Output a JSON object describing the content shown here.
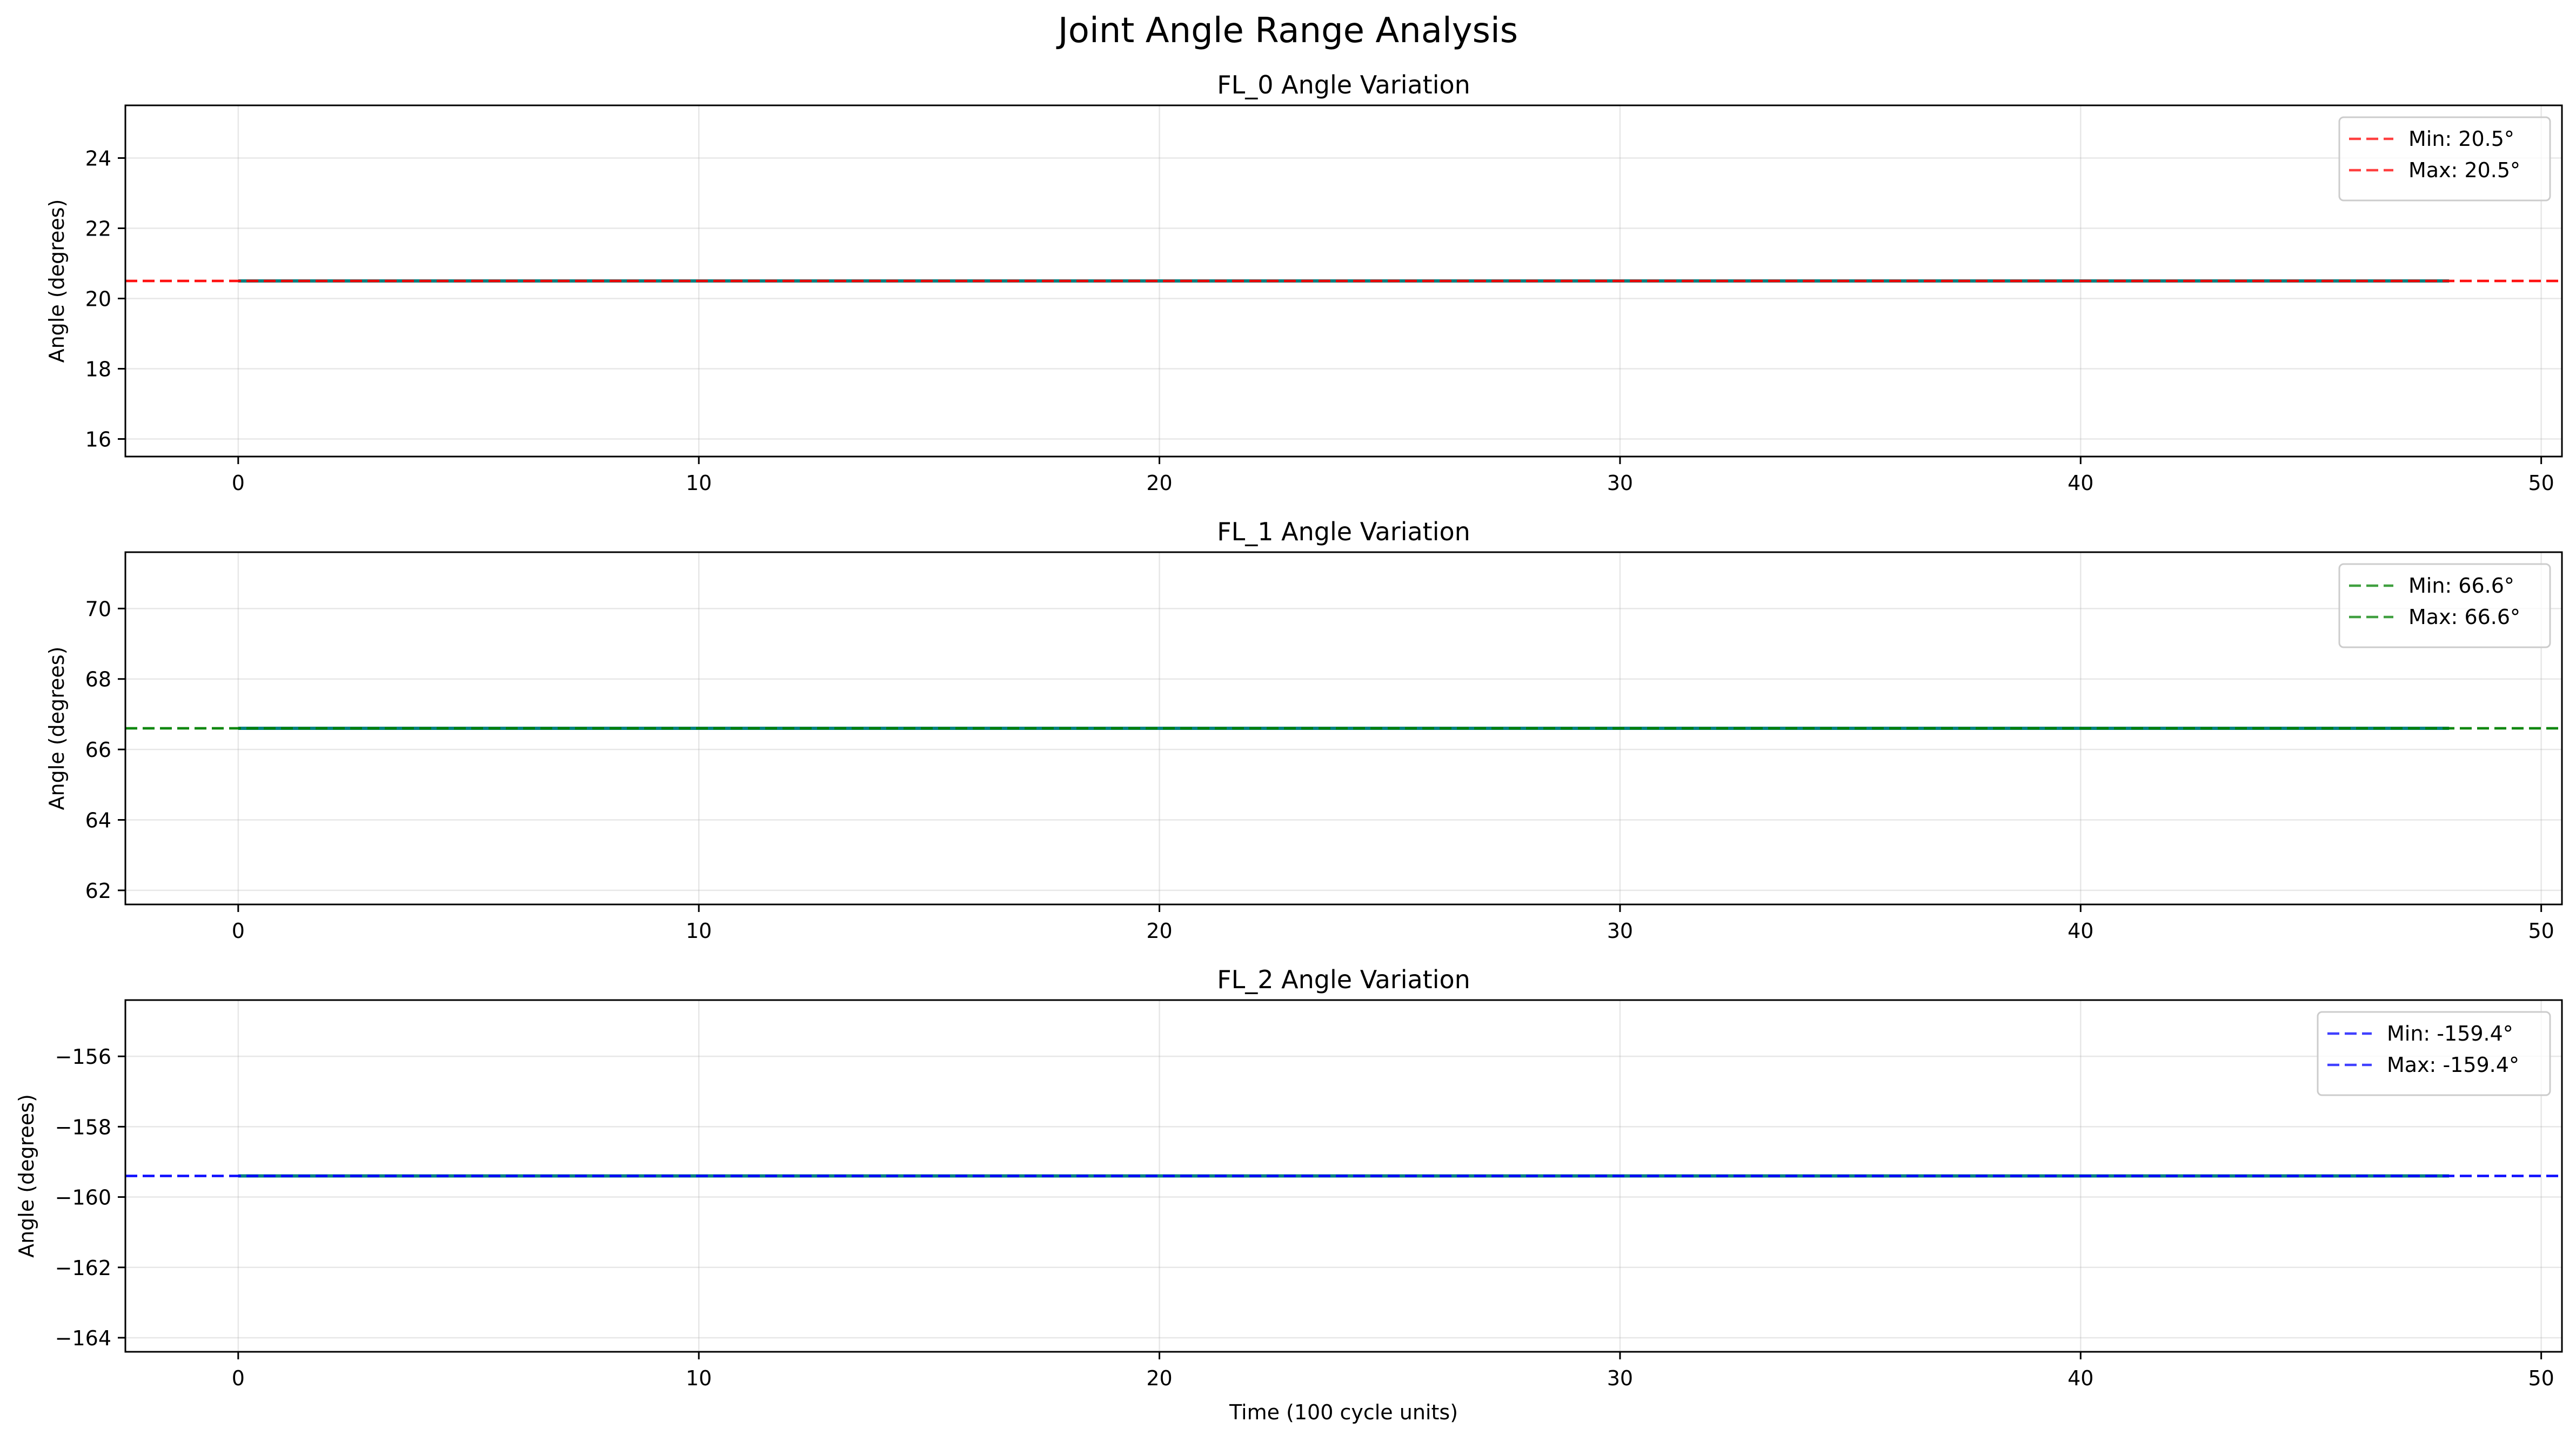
{
  "figure": {
    "title": "Joint Angle Range Analysis"
  },
  "chart_data": [
    {
      "type": "line",
      "title": "FL_0 Angle Variation",
      "xlabel": "",
      "ylabel": "Angle (degrees)",
      "xlim": [
        -2.45,
        50.45
      ],
      "ylim": [
        15.5,
        25.5
      ],
      "xticks": [
        0,
        10,
        20,
        30,
        40,
        50
      ],
      "yticks": [
        16,
        18,
        20,
        22,
        24
      ],
      "grid": true,
      "legend_position": "top-right",
      "series": [
        {
          "name": "",
          "x": [
            0,
            48
          ],
          "y": [
            20.5,
            20.5
          ],
          "color": "#008080",
          "style": "solid"
        },
        {
          "name": "Min: 20.5°",
          "y_const": 20.5,
          "color": "#ff0000",
          "style": "dashed"
        },
        {
          "name": "Max: 20.5°",
          "y_const": 20.5,
          "color": "#ff0000",
          "style": "dashed"
        }
      ]
    },
    {
      "type": "line",
      "title": "FL_1 Angle Variation",
      "xlabel": "",
      "ylabel": "Angle (degrees)",
      "xlim": [
        -2.45,
        50.45
      ],
      "ylim": [
        61.6,
        71.6
      ],
      "xticks": [
        0,
        10,
        20,
        30,
        40,
        50
      ],
      "yticks": [
        62,
        64,
        66,
        68,
        70
      ],
      "grid": true,
      "legend_position": "top-right",
      "series": [
        {
          "name": "",
          "x": [
            0,
            48
          ],
          "y": [
            66.6,
            66.6
          ],
          "color": "#008080",
          "style": "solid"
        },
        {
          "name": "Min: 66.6°",
          "y_const": 66.6,
          "color": "#008000",
          "style": "dashed"
        },
        {
          "name": "Max: 66.6°",
          "y_const": 66.6,
          "color": "#008000",
          "style": "dashed"
        }
      ]
    },
    {
      "type": "line",
      "title": "FL_2 Angle Variation",
      "xlabel": "Time (100 cycle units)",
      "ylabel": "Angle (degrees)",
      "xlim": [
        -2.45,
        50.45
      ],
      "ylim": [
        -164.4,
        -154.4
      ],
      "xticks": [
        0,
        10,
        20,
        30,
        40,
        50
      ],
      "yticks": [
        -164,
        -162,
        -160,
        -158,
        -156
      ],
      "grid": true,
      "legend_position": "top-right",
      "series": [
        {
          "name": "",
          "x": [
            0,
            48
          ],
          "y": [
            -159.4,
            -159.4
          ],
          "color": "#008080",
          "style": "solid"
        },
        {
          "name": "Min: -159.4°",
          "y_const": -159.4,
          "color": "#0000ff",
          "style": "dashed"
        },
        {
          "name": "Max: -159.4°",
          "y_const": -159.4,
          "color": "#0000ff",
          "style": "dashed"
        }
      ]
    }
  ]
}
